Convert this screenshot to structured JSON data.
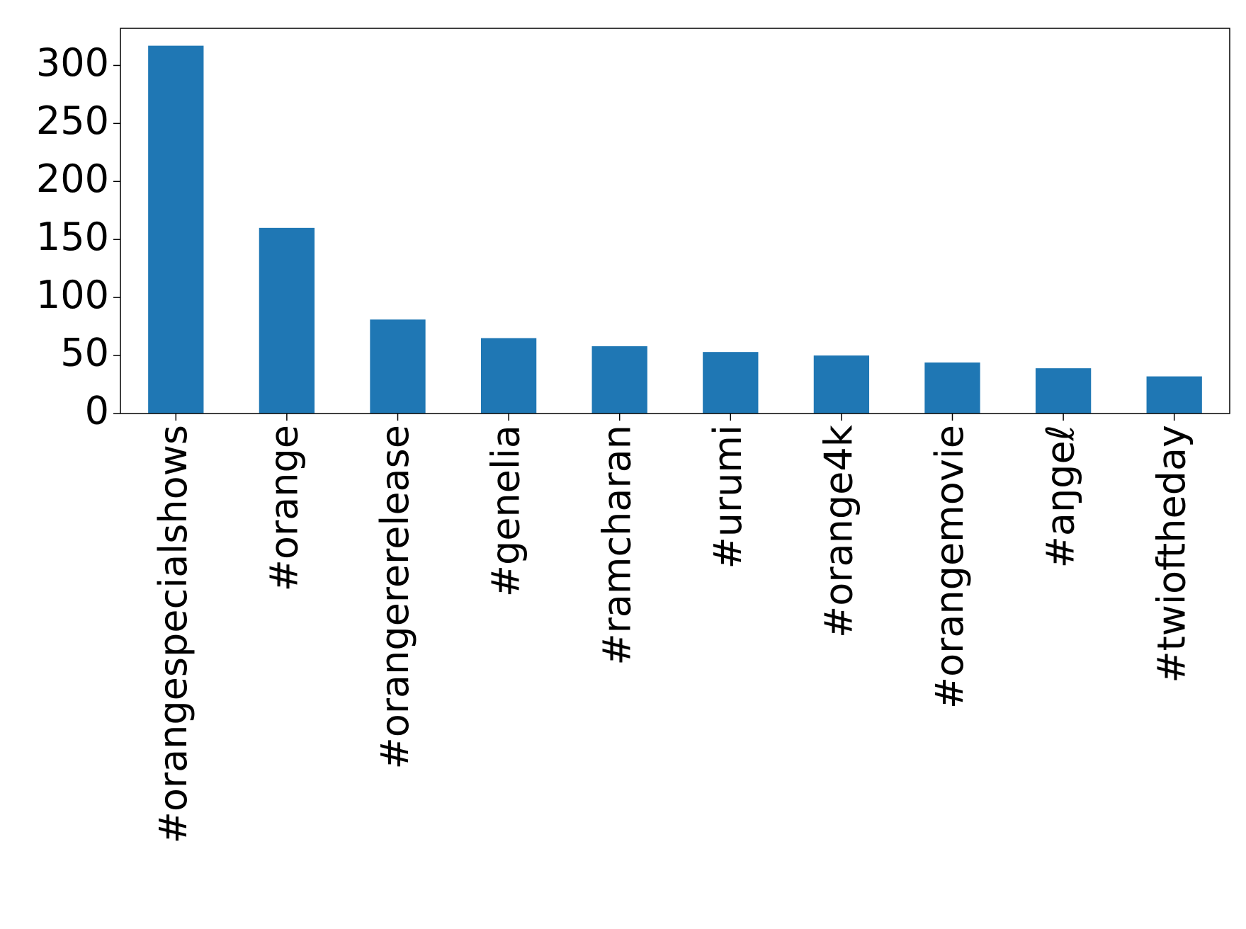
{
  "chart_data": {
    "type": "bar",
    "categories": [
      "#orangespecialshows",
      "#orange",
      "#orangererelease",
      "#genelia",
      "#ramcharan",
      "#urumi",
      "#orange4k",
      "#orangemovie",
      "#aŋgeℓ",
      "#twioftheday"
    ],
    "values": [
      317,
      160,
      81,
      65,
      58,
      53,
      50,
      44,
      39,
      32
    ],
    "color": "#1f77b4",
    "ylim": [
      0,
      332
    ],
    "yticks": [
      0,
      50,
      100,
      150,
      200,
      250,
      300
    ],
    "grid": false
  }
}
